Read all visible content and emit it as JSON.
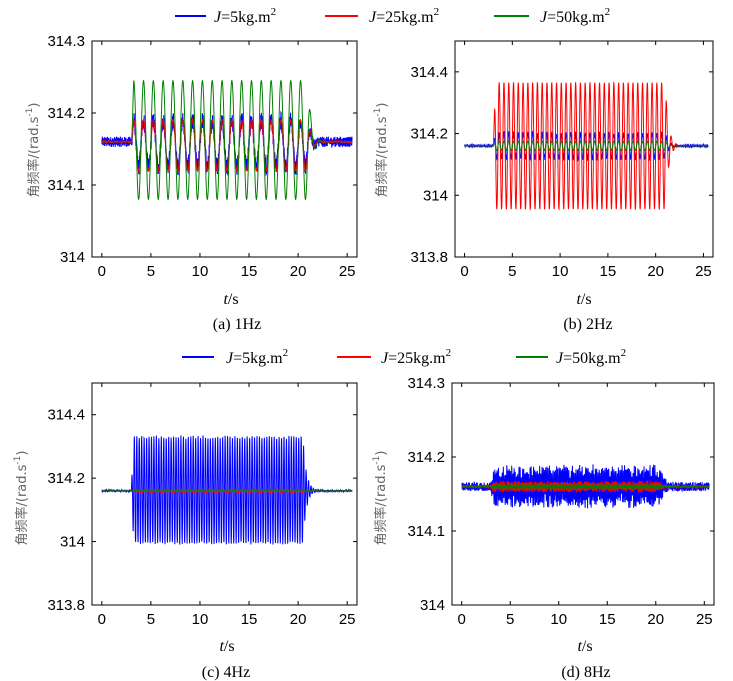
{
  "legend_top": [
    {
      "label_italic": "J",
      "label_rest": "=5kg.m",
      "sup": "2",
      "color": "#0000ff"
    },
    {
      "label_italic": "J",
      "label_rest": "=25kg.m",
      "sup": "2",
      "color": "#ff0000"
    },
    {
      "label_italic": "J",
      "label_rest": "=50kg.m",
      "sup": "2",
      "color": "#008000"
    }
  ],
  "legend_bottom": [
    {
      "label_italic": "J",
      "label_rest": "=5kg.m",
      "sup": "2",
      "color": "#0000ff"
    },
    {
      "label_italic": "J",
      "label_rest": "=25kg.m",
      "sup": "2",
      "color": "#ff0000"
    },
    {
      "label_italic": "J",
      "label_rest": "=50kg.m",
      "sup": "2",
      "color": "#008000"
    }
  ],
  "chart_data": [
    {
      "type": "line",
      "caption": "(a) 1Hz",
      "xlabel_italic": "t",
      "xlabel_rest": "/s",
      "ylabel_main": "角频率/(rad.s",
      "ylabel_sup": "-1",
      "ylabel_end": ")",
      "xlim": [
        -1,
        26
      ],
      "ylim": [
        314,
        314.3
      ],
      "xticks": [
        0,
        5,
        10,
        15,
        20,
        25
      ],
      "yticks": [
        314,
        314.1,
        314.2,
        314.3
      ],
      "ytick_labels": [
        "314",
        "314.1",
        "314.2",
        "314.3"
      ],
      "disturbance_freq_hz": 1,
      "disturbance_window_s": [
        3,
        21
      ],
      "base": 314.16,
      "series": [
        {
          "name": "J=5kg.m2",
          "color": "#0000ff",
          "peak_to_peak": [
            314.125,
            314.19
          ],
          "noise": 0.012
        },
        {
          "name": "J=25kg.m2",
          "color": "#ff0000",
          "peak_to_peak": [
            314.12,
            314.19
          ],
          "noise": 0.002
        },
        {
          "name": "J=50kg.m2",
          "color": "#008000",
          "peak_to_peak": [
            314.08,
            314.245
          ],
          "noise": 0
        }
      ]
    },
    {
      "type": "line",
      "caption": "(b) 2Hz",
      "xlabel_italic": "t",
      "xlabel_rest": "/s",
      "ylabel_main": "角频率/(rad.s",
      "ylabel_sup": "-1",
      "ylabel_end": ")",
      "xlim": [
        -1,
        26
      ],
      "ylim": [
        313.8,
        314.5
      ],
      "xticks": [
        0,
        5,
        10,
        15,
        20,
        25
      ],
      "yticks": [
        313.8,
        314,
        314.2,
        314.4
      ],
      "ytick_labels": [
        "313.8",
        "314",
        "314.2",
        "314.4"
      ],
      "disturbance_freq_hz": 2,
      "disturbance_window_s": [
        3,
        21
      ],
      "base": 314.16,
      "series": [
        {
          "name": "J=5kg.m2",
          "color": "#0000ff",
          "peak_to_peak": [
            314.12,
            314.2
          ],
          "noise": 0.008
        },
        {
          "name": "J=25kg.m2",
          "color": "#ff0000",
          "peak_to_peak": [
            313.955,
            314.365
          ],
          "noise": 0
        },
        {
          "name": "J=50kg.m2",
          "color": "#008000",
          "peak_to_peak": [
            314.145,
            314.175
          ],
          "noise": 0
        }
      ]
    },
    {
      "type": "line",
      "caption": "(c) 4Hz",
      "xlabel_italic": "t",
      "xlabel_rest": "/s",
      "ylabel_main": "角频率/(rad.s",
      "ylabel_sup": "-1",
      "ylabel_end": ")",
      "xlim": [
        -1,
        26
      ],
      "ylim": [
        313.8,
        314.5
      ],
      "xticks": [
        0,
        5,
        10,
        15,
        20,
        25
      ],
      "yticks": [
        313.8,
        314,
        314.2,
        314.4
      ],
      "ytick_labels": [
        "313.8",
        "314",
        "314.2",
        "314.4"
      ],
      "disturbance_freq_hz": 4,
      "disturbance_window_s": [
        3,
        20.5
      ],
      "base": 314.16,
      "series": [
        {
          "name": "J=5kg.m2",
          "color": "#0000ff",
          "peak_to_peak": [
            313.995,
            314.33
          ],
          "noise": 0.005
        },
        {
          "name": "J=25kg.m2",
          "color": "#ff0000",
          "peak_to_peak": [
            314.155,
            314.165
          ],
          "noise": 0
        },
        {
          "name": "J=50kg.m2",
          "color": "#008000",
          "peak_to_peak": [
            314.158,
            314.162
          ],
          "noise": 0
        }
      ]
    },
    {
      "type": "line",
      "caption": "(d) 8Hz",
      "xlabel_italic": "t",
      "xlabel_rest": "/s",
      "ylabel_main": "角频率/(rad.s",
      "ylabel_sup": "-1",
      "ylabel_end": ")",
      "xlim": [
        -1,
        26
      ],
      "ylim": [
        314,
        314.3
      ],
      "xticks": [
        0,
        5,
        10,
        15,
        20,
        25
      ],
      "yticks": [
        314,
        314.1,
        314.2,
        314.3
      ],
      "ytick_labels": [
        "314",
        "314.1",
        "314.2",
        "314.3"
      ],
      "disturbance_freq_hz": 8,
      "disturbance_window_s": [
        3,
        20.5
      ],
      "base": 314.16,
      "series": [
        {
          "name": "J=5kg.m2",
          "color": "#0000ff",
          "peak_to_peak": [
            314.14,
            314.18
          ],
          "noise": 0.01
        },
        {
          "name": "J=25kg.m2",
          "color": "#ff0000",
          "peak_to_peak": [
            314.155,
            314.165
          ],
          "noise": 0.003
        },
        {
          "name": "J=50kg.m2",
          "color": "#008000",
          "peak_to_peak": [
            314.158,
            314.162
          ],
          "noise": 0
        }
      ]
    }
  ]
}
